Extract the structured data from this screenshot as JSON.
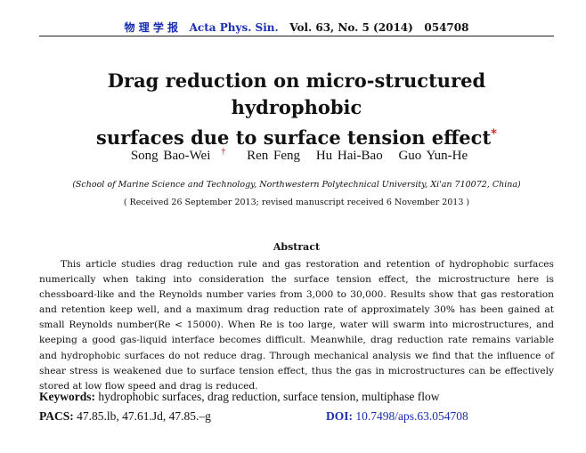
{
  "header": {
    "journal_cn": "物 理 学 报",
    "journal_en": "Acta Phys. Sin.",
    "volume": "Vol. 63, No. 5 (2014)",
    "article_no": "054708"
  },
  "title": {
    "line1": "Drag reduction on micro-structured hydrophobic",
    "line2": "surfaces due to surface tension effect",
    "mark": "*"
  },
  "authors": [
    {
      "name": "Song Bao-Wei",
      "mark": "†"
    },
    {
      "name": "Ren Feng"
    },
    {
      "name": "Hu Hai-Bao"
    },
    {
      "name": "Guo Yun-He"
    }
  ],
  "affiliation": "(School of Marine Science and Technology, Northwestern Polytechnical University, Xi'an 710072, China)",
  "received": "( Received 26 September 2013; revised manuscript received 6 November 2013 )",
  "abstract": {
    "heading": "Abstract",
    "text": "This article studies drag reduction rule and gas restoration and retention of hydrophobic surfaces numerically when taking into consideration the surface tension effect, the microstructure here is chessboard-like and the Reynolds number varies from 3,000 to 30,000. Results show that gas restoration and retention keep well, and a maximum drag reduction rate of approximately 30% has been gained at small Reynolds number(Re < 15000). When Re is too large, water will swarm into microstructures, and keeping a good gas-liquid interface becomes difficult. Meanwhile, drag reduction rate remains variable and hydrophobic surfaces do not reduce drag. Through mechanical analysis we find that the influence of shear stress is weakened due to surface tension effect, thus the gas in microstructures can be effectively stored at low flow speed and drag is reduced."
  },
  "keywords": {
    "label": "Keywords:",
    "value": "hydrophobic surfaces, drag reduction, surface tension, multiphase flow"
  },
  "pacs": {
    "label": "PACS:",
    "value": "47.85.lb, 47.61.Jd, 47.85.–g"
  },
  "doi": {
    "label": "DOI:",
    "value": "10.7498/aps.63.054708"
  },
  "colors": {
    "accent_blue": "#1a2fb0",
    "mark_red": "#d01010"
  }
}
